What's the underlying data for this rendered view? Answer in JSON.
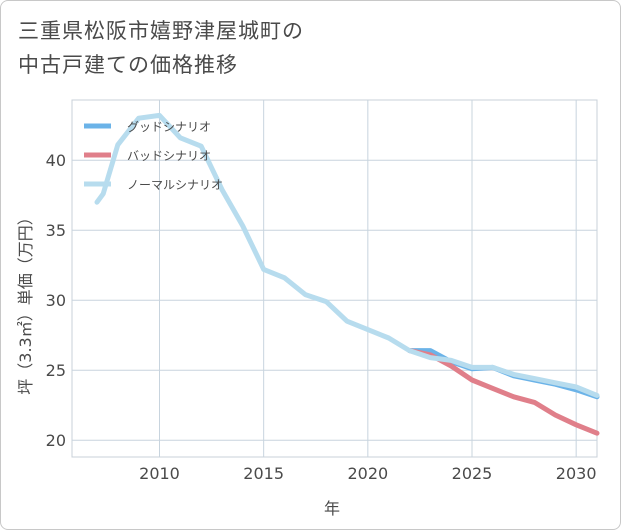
{
  "title": {
    "line1": "三重県松阪市嬉野津屋城町の",
    "line2": "中古戸建ての価格推移"
  },
  "chart_data": {
    "type": "line",
    "title": "三重県松阪市嬉野津屋城町の中古戸建ての価格推移",
    "xlabel": "年",
    "ylabel": "坪（3.3㎡）単価（万円）",
    "xlim": [
      2005.8,
      2031.0
    ],
    "ylim": [
      18.8,
      44.3
    ],
    "xticks": [
      2010,
      2015,
      2020,
      2025,
      2030
    ],
    "yticks": [
      20,
      25,
      30,
      35,
      40
    ],
    "grid": true,
    "legend_position": "top-left",
    "series": [
      {
        "name": "グッドシナリオ",
        "color": "#6bb3e8",
        "points": [
          [
            2022,
            26.4
          ],
          [
            2023,
            26.4
          ],
          [
            2024,
            25.6
          ],
          [
            2025,
            25.1
          ],
          [
            2026,
            25.2
          ],
          [
            2027,
            24.6
          ],
          [
            2028,
            24.3
          ],
          [
            2029,
            24.0
          ],
          [
            2030,
            23.6
          ],
          [
            2031,
            23.1
          ]
        ]
      },
      {
        "name": "バッドシナリオ",
        "color": "#e07f8a",
        "points": [
          [
            2022,
            26.4
          ],
          [
            2023,
            26.1
          ],
          [
            2024,
            25.3
          ],
          [
            2025,
            24.3
          ],
          [
            2026,
            23.7
          ],
          [
            2027,
            23.1
          ],
          [
            2028,
            22.7
          ],
          [
            2029,
            21.8
          ],
          [
            2030,
            21.1
          ],
          [
            2031,
            20.5
          ]
        ]
      },
      {
        "name": "ノーマルシナリオ",
        "color": "#b7dcee",
        "points": [
          [
            2007.0,
            37.0
          ],
          [
            2007.3,
            37.6
          ],
          [
            2008,
            41.1
          ],
          [
            2009,
            43.0
          ],
          [
            2010,
            43.2
          ],
          [
            2011,
            41.6
          ],
          [
            2012,
            41.0
          ],
          [
            2013,
            37.9
          ],
          [
            2014,
            35.3
          ],
          [
            2015,
            32.2
          ],
          [
            2016,
            31.6
          ],
          [
            2017,
            30.4
          ],
          [
            2018,
            29.9
          ],
          [
            2019,
            28.5
          ],
          [
            2020,
            27.9
          ],
          [
            2021,
            27.3
          ],
          [
            2022,
            26.4
          ],
          [
            2023,
            25.9
          ],
          [
            2024,
            25.7
          ],
          [
            2025,
            25.2
          ],
          [
            2026,
            25.2
          ],
          [
            2027,
            24.7
          ],
          [
            2028,
            24.4
          ],
          [
            2029,
            24.1
          ],
          [
            2030,
            23.8
          ],
          [
            2031,
            23.2
          ]
        ]
      }
    ]
  }
}
